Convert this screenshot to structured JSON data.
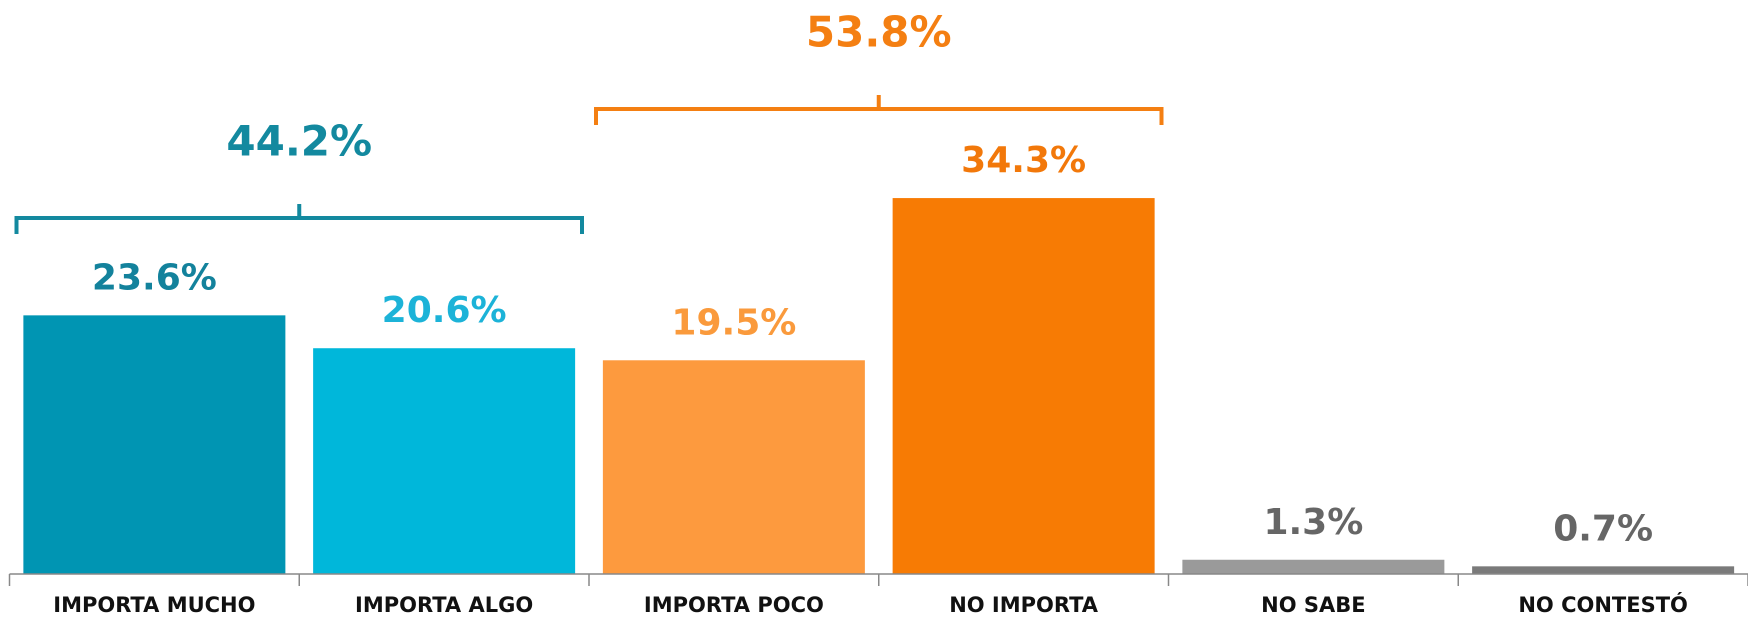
{
  "chart_data": {
    "type": "bar",
    "categories": [
      "IMPORTA MUCHO",
      "IMPORTA ALGO",
      "IMPORTA POCO",
      "NO IMPORTA",
      "NO SABE",
      "NO CONTESTÓ"
    ],
    "values": [
      23.6,
      20.6,
      19.5,
      34.3,
      1.3,
      0.7
    ],
    "value_labels": [
      "23.6%",
      "20.6%",
      "19.5%",
      "34.3%",
      "1.3%",
      "0.7%"
    ],
    "colors": [
      "#0095b3",
      "#00b7da",
      "#fd9a3e",
      "#f77b04",
      "#9a9a9a",
      "#7a7a7a"
    ],
    "label_colors": [
      "#13829c",
      "#1cb3d8",
      "#fa9a3c",
      "#f2780a",
      "#666666",
      "#666666"
    ],
    "groups": [
      {
        "label": "44.2%",
        "color": "#13899f",
        "categories": [
          "IMPORTA MUCHO",
          "IMPORTA ALGO"
        ]
      },
      {
        "label": "53.8%",
        "color": "#f47f12",
        "categories": [
          "IMPORTA POCO",
          "NO IMPORTA"
        ]
      }
    ]
  }
}
